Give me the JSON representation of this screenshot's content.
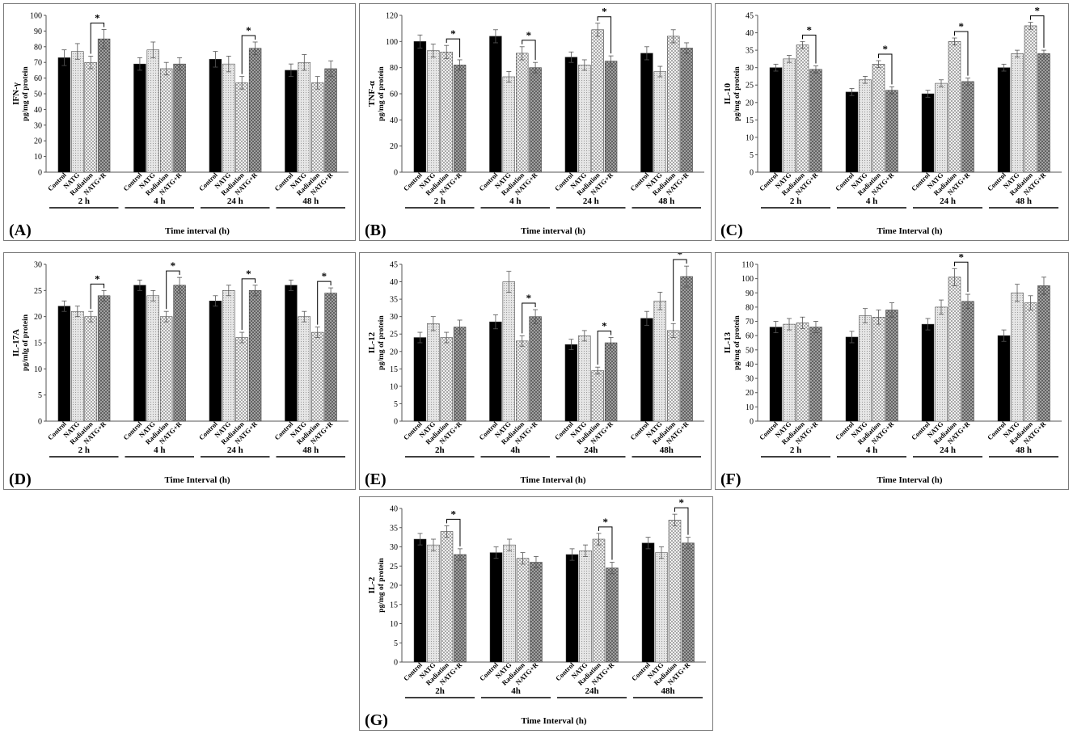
{
  "colors": {
    "control": "#000000",
    "natg": "#d9d9d9",
    "radiation": "#cfcfcf",
    "natgr": "#8a8a8a",
    "axis": "#555555"
  },
  "chart_data": [
    {
      "type": "bar",
      "panel_label": "(A)",
      "ylabel": "IFN-γ",
      "ylabel2": "pg/mg of protein",
      "xlabel": "Time interval (h)",
      "ylim": [
        0,
        100
      ],
      "yticks": [
        0,
        10,
        20,
        30,
        40,
        50,
        60,
        70,
        80,
        90,
        100
      ],
      "categories": [
        "Control",
        "NATG",
        "Radiation",
        "NATG+R"
      ],
      "groups": [
        "2 h",
        "4 h",
        "24 h",
        "48 h"
      ],
      "series": [
        {
          "values": [
            73,
            77,
            70,
            85
          ],
          "errors": [
            5,
            5,
            4,
            6
          ]
        },
        {
          "values": [
            69,
            78,
            66,
            69
          ],
          "errors": [
            4,
            5,
            4,
            4
          ]
        },
        {
          "values": [
            72,
            69,
            57,
            79
          ],
          "errors": [
            5,
            5,
            4,
            4
          ]
        },
        {
          "values": [
            65,
            70,
            57,
            66
          ],
          "errors": [
            4,
            5,
            4,
            5
          ]
        }
      ],
      "sig": [
        {
          "g": 0,
          "a": 2,
          "b": 3,
          "label": "*"
        },
        {
          "g": 2,
          "a": 2,
          "b": 3,
          "label": "*"
        }
      ]
    },
    {
      "type": "bar",
      "panel_label": "(B)",
      "ylabel": "TNF-α",
      "ylabel2": "pg/mg of protein",
      "xlabel": "Time interval (h)",
      "ylim": [
        0,
        120
      ],
      "yticks": [
        0,
        20,
        40,
        60,
        80,
        100,
        120
      ],
      "categories": [
        "Control",
        "NATG",
        "Radiation",
        "NATG+R"
      ],
      "groups": [
        "2 h",
        "4 h",
        "24 h",
        "48 h"
      ],
      "series": [
        {
          "values": [
            100,
            93,
            92,
            82
          ],
          "errors": [
            5,
            5,
            5,
            4
          ]
        },
        {
          "values": [
            104,
            73,
            91,
            80
          ],
          "errors": [
            5,
            4,
            5,
            4
          ]
        },
        {
          "values": [
            88,
            82,
            109,
            85
          ],
          "errors": [
            4,
            4,
            5,
            4
          ]
        },
        {
          "values": [
            91,
            77,
            104,
            95
          ],
          "errors": [
            5,
            4,
            5,
            4
          ]
        }
      ],
      "sig": [
        {
          "g": 0,
          "a": 2,
          "b": 3,
          "label": "*"
        },
        {
          "g": 1,
          "a": 2,
          "b": 3,
          "label": "*"
        },
        {
          "g": 2,
          "a": 2,
          "b": 3,
          "label": "*"
        }
      ]
    },
    {
      "type": "bar",
      "panel_label": "(C)",
      "ylabel": "IL-10",
      "ylabel2": "pg/mg of protein",
      "xlabel": "Time Interval (h)",
      "ylim": [
        0,
        45
      ],
      "yticks": [
        0,
        5,
        10,
        15,
        20,
        25,
        30,
        35,
        40,
        45
      ],
      "categories": [
        "Control",
        "NATG",
        "Radiation",
        "NATG+R"
      ],
      "groups": [
        "2 h",
        "4 h",
        "24 h",
        "48 h"
      ],
      "series": [
        {
          "values": [
            30,
            32.5,
            36.5,
            29.5
          ],
          "errors": [
            1,
            1,
            1,
            1
          ]
        },
        {
          "values": [
            23,
            26.5,
            31,
            23.5
          ],
          "errors": [
            1,
            1,
            1,
            1
          ]
        },
        {
          "values": [
            22.5,
            25.5,
            37.5,
            26
          ],
          "errors": [
            1,
            1,
            1,
            1
          ]
        },
        {
          "values": [
            30,
            34,
            42,
            34
          ],
          "errors": [
            1,
            1,
            1,
            1
          ]
        }
      ],
      "sig": [
        {
          "g": 0,
          "a": 2,
          "b": 3,
          "label": "*"
        },
        {
          "g": 1,
          "a": 2,
          "b": 3,
          "label": "*"
        },
        {
          "g": 2,
          "a": 2,
          "b": 3,
          "label": "*"
        },
        {
          "g": 3,
          "a": 2,
          "b": 3,
          "label": "*"
        }
      ]
    },
    {
      "type": "bar",
      "panel_label": "(D)",
      "ylabel": "IL-17A",
      "ylabel2": "pg/mlg of protein",
      "xlabel": "Time Interval (h)",
      "ylim": [
        0,
        30
      ],
      "yticks": [
        0,
        5,
        10,
        15,
        20,
        25,
        30
      ],
      "categories": [
        "Control",
        "NATG",
        "Radiation",
        "NATG+R"
      ],
      "groups": [
        "2 h",
        "4 h",
        "24 h",
        "48 h"
      ],
      "series": [
        {
          "values": [
            22,
            21,
            20,
            24
          ],
          "errors": [
            1,
            1,
            1,
            1
          ]
        },
        {
          "values": [
            26,
            24,
            20,
            26
          ],
          "errors": [
            1,
            1,
            1,
            1.5
          ]
        },
        {
          "values": [
            23,
            25,
            16,
            25
          ],
          "errors": [
            1,
            1,
            1,
            1
          ]
        },
        {
          "values": [
            26,
            20,
            17,
            24.5
          ],
          "errors": [
            1,
            1,
            1,
            1
          ]
        }
      ],
      "sig": [
        {
          "g": 0,
          "a": 2,
          "b": 3,
          "label": "*"
        },
        {
          "g": 1,
          "a": 2,
          "b": 3,
          "label": "*"
        },
        {
          "g": 2,
          "a": 2,
          "b": 3,
          "label": "*"
        },
        {
          "g": 3,
          "a": 2,
          "b": 3,
          "label": "*"
        }
      ]
    },
    {
      "type": "bar",
      "panel_label": "(E)",
      "ylabel": "IL-12",
      "ylabel2": "pg/mg of protein",
      "xlabel": "Time Interval (h)",
      "ylim": [
        0,
        45
      ],
      "yticks": [
        0,
        5,
        10,
        15,
        20,
        25,
        30,
        35,
        40,
        45
      ],
      "categories": [
        "Control",
        "NATG",
        "Radiation",
        "NATG+R"
      ],
      "groups": [
        "2h",
        "4h",
        "24h",
        "48h"
      ],
      "series": [
        {
          "values": [
            24,
            28,
            24,
            27
          ],
          "errors": [
            1.5,
            2,
            1.5,
            2
          ]
        },
        {
          "values": [
            28.5,
            40,
            23,
            30
          ],
          "errors": [
            2,
            3,
            1.5,
            2
          ]
        },
        {
          "values": [
            22,
            24.5,
            14.5,
            22.5
          ],
          "errors": [
            1.5,
            1.5,
            1,
            1.5
          ]
        },
        {
          "values": [
            29.5,
            34.5,
            26,
            41.5
          ],
          "errors": [
            2,
            2.5,
            2,
            3
          ]
        }
      ],
      "sig": [
        {
          "g": 1,
          "a": 2,
          "b": 3,
          "label": "*"
        },
        {
          "g": 2,
          "a": 2,
          "b": 3,
          "label": "*"
        },
        {
          "g": 3,
          "a": 2,
          "b": 3,
          "label": "*"
        }
      ]
    },
    {
      "type": "bar",
      "panel_label": "(F)",
      "ylabel": "IL-13",
      "ylabel2": "pg/mg of protein",
      "xlabel": "Time Interval (h)",
      "ylim": [
        0,
        110
      ],
      "yticks": [
        0,
        10,
        20,
        30,
        40,
        50,
        60,
        70,
        80,
        90,
        100,
        110
      ],
      "categories": [
        "Control",
        "NATG",
        "Radiation",
        "NATG+R"
      ],
      "groups": [
        "2 h",
        "4 h",
        "24 h",
        "48 h"
      ],
      "series": [
        {
          "values": [
            66,
            68,
            69,
            66
          ],
          "errors": [
            4,
            4,
            4,
            4
          ]
        },
        {
          "values": [
            59,
            74,
            73,
            78
          ],
          "errors": [
            4,
            5,
            5,
            5
          ]
        },
        {
          "values": [
            68,
            80,
            101,
            84
          ],
          "errors": [
            4,
            5,
            6,
            5
          ]
        },
        {
          "values": [
            60,
            90,
            83,
            95
          ],
          "errors": [
            4,
            6,
            5,
            6
          ]
        }
      ],
      "sig": [
        {
          "g": 2,
          "a": 2,
          "b": 3,
          "label": "*"
        }
      ]
    },
    {
      "type": "bar",
      "panel_label": "(G)",
      "ylabel": "IL-2",
      "ylabel2": "pg/mg of protein",
      "xlabel": "Time Interval (h)",
      "ylim": [
        0,
        40
      ],
      "yticks": [
        0,
        5,
        10,
        15,
        20,
        25,
        30,
        35,
        40
      ],
      "categories": [
        "Control",
        "NATG",
        "Radiation",
        "NATG+R"
      ],
      "groups": [
        "2h",
        "4h",
        "24h",
        "48h"
      ],
      "series": [
        {
          "values": [
            32,
            30.5,
            34,
            28
          ],
          "errors": [
            1.5,
            1.5,
            1.5,
            1.5
          ]
        },
        {
          "values": [
            28.5,
            30.5,
            27,
            26
          ],
          "errors": [
            1.5,
            1.5,
            1.5,
            1.5
          ]
        },
        {
          "values": [
            28,
            29,
            32,
            24.5
          ],
          "errors": [
            1.5,
            1.5,
            1.5,
            1.5
          ]
        },
        {
          "values": [
            31,
            28.5,
            37,
            31
          ],
          "errors": [
            1.5,
            1.5,
            1.5,
            1.5
          ]
        }
      ],
      "sig": [
        {
          "g": 0,
          "a": 2,
          "b": 3,
          "label": "*"
        },
        {
          "g": 2,
          "a": 2,
          "b": 3,
          "label": "*"
        },
        {
          "g": 3,
          "a": 2,
          "b": 3,
          "label": "*"
        }
      ]
    }
  ]
}
